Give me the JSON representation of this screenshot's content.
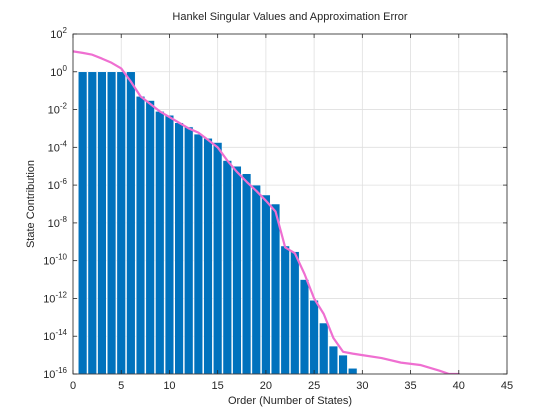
{
  "chart_data": {
    "type": "bar",
    "title": "Hankel Singular Values and Approximation Error",
    "xlabel": "Order (Number of States)",
    "ylabel": "State Contribution",
    "xlim": [
      0,
      45
    ],
    "ylim_exponent": [
      -16,
      2
    ],
    "yscale": "log",
    "grid": true,
    "x_ticks": [
      "0",
      "5",
      "10",
      "15",
      "20",
      "25",
      "30",
      "35",
      "40",
      "45"
    ],
    "y_tick_base": "10",
    "y_tick_exponents": [
      "2",
      "0",
      "-2",
      "-4",
      "-6",
      "-8",
      "-10",
      "-12",
      "-14",
      "-16"
    ],
    "bar_color": "#0072bd",
    "line_color": "#ef6fd1",
    "series": [
      {
        "type": "bar",
        "x": [
          1,
          2,
          3,
          4,
          5,
          6,
          7,
          8,
          9,
          10,
          11,
          12,
          13,
          14,
          15,
          16,
          17,
          18,
          19,
          20,
          21,
          22,
          23,
          24,
          25,
          26,
          27,
          28,
          29
        ],
        "values": [
          1.0,
          1.0,
          1.0,
          1.0,
          1.0,
          1.0,
          0.05,
          0.03,
          0.008,
          0.005,
          0.002,
          0.0012,
          0.0005,
          0.0003,
          0.00018,
          2e-05,
          1e-05,
          4e-06,
          1e-06,
          3e-07,
          1e-07,
          6e-10,
          3e-10,
          1e-11,
          8e-13,
          5e-14,
          3e-15,
          1e-15,
          2e-16
        ]
      },
      {
        "type": "line",
        "x": [
          0,
          1,
          2,
          3,
          4,
          5,
          6,
          7,
          8,
          9,
          10,
          11,
          12,
          13,
          14,
          15,
          16,
          17,
          18,
          19,
          20,
          21,
          22,
          23,
          24,
          25,
          26,
          27,
          28,
          29,
          30,
          32,
          34,
          36,
          38,
          39,
          40
        ],
        "values": [
          12,
          10,
          8,
          5,
          3,
          1.5,
          0.3,
          0.05,
          0.02,
          0.008,
          0.004,
          0.002,
          0.001,
          0.0006,
          0.00025,
          0.0001,
          2e-05,
          5e-06,
          1.5e-06,
          5e-07,
          1.5e-07,
          4e-08,
          5e-10,
          2.5e-10,
          2e-11,
          1e-12,
          1.5e-13,
          8e-15,
          1.5e-15,
          1.2e-15,
          1e-15,
          7e-16,
          4e-16,
          3e-16,
          1.5e-16,
          7e-17,
          1e-17
        ]
      }
    ]
  }
}
